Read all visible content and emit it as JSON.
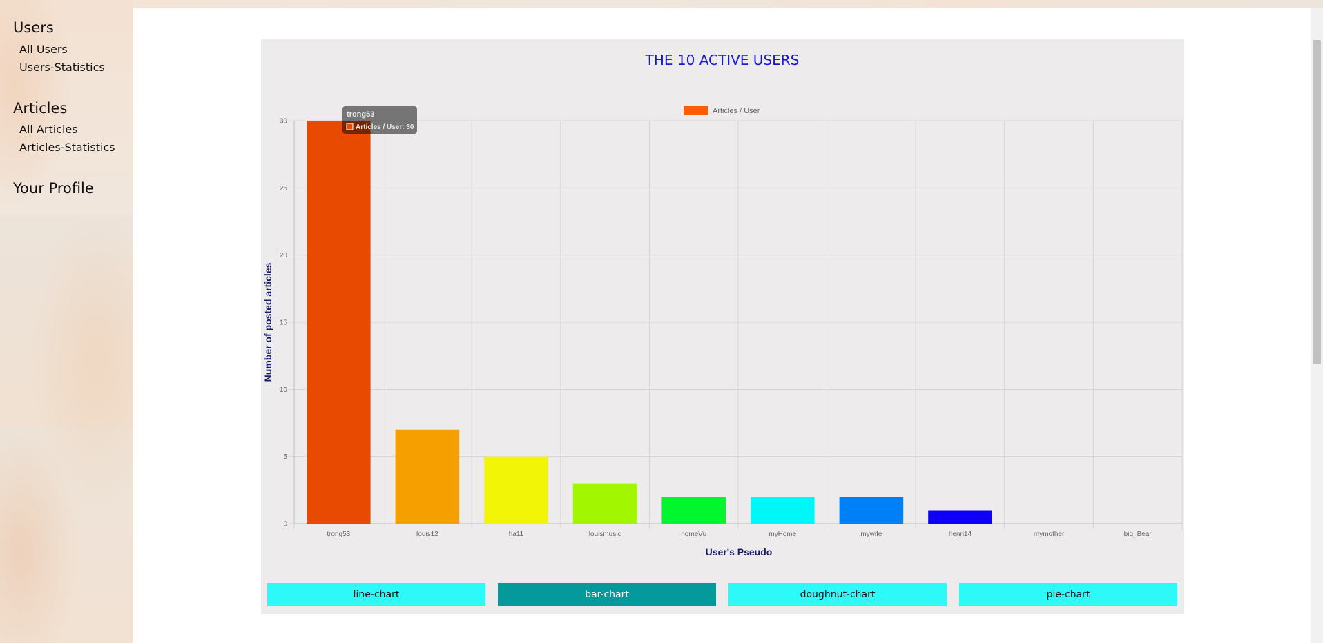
{
  "sidebar": {
    "groups": [
      {
        "title": "Users",
        "links": [
          "All Users",
          "Users-Statistics"
        ]
      },
      {
        "title": "Articles",
        "links": [
          "All Articles",
          "Articles-Statistics"
        ]
      },
      {
        "title": "Your Profile",
        "links": []
      }
    ]
  },
  "chart_data": {
    "type": "bar",
    "title": "THE 10 ACTIVE USERS",
    "xlabel": "User's Pseudo",
    "ylabel": "Number of posted articles",
    "categories": [
      "trong53",
      "louis12",
      "ha11",
      "louismusic",
      "homeVu",
      "myHome",
      "mywife",
      "henri14",
      "mymother",
      "big_Bear"
    ],
    "series": [
      {
        "name": "Articles / User",
        "values": [
          30,
          7,
          5,
          3,
          2,
          2,
          2,
          1,
          0,
          0
        ]
      }
    ],
    "colors": [
      "#e84a02",
      "#f5a000",
      "#f2f506",
      "#a2f700",
      "#00f72e",
      "#00f7f7",
      "#0080f7",
      "#0d00f7",
      "#8a00f7",
      "#f700a2"
    ],
    "legend_color": "#ff5c0a",
    "ylim": [
      0,
      30
    ],
    "yticks": [
      0,
      5,
      10,
      15,
      20,
      25,
      30
    ],
    "grid": true,
    "legend_position": "top",
    "tooltip": {
      "title": "trong53",
      "body": "Articles / User: 30"
    }
  },
  "chart_buttons": [
    {
      "label": "line-chart",
      "active": false
    },
    {
      "label": "bar-chart",
      "active": true
    },
    {
      "label": "doughnut-chart",
      "active": false
    },
    {
      "label": "pie-chart",
      "active": false
    }
  ]
}
